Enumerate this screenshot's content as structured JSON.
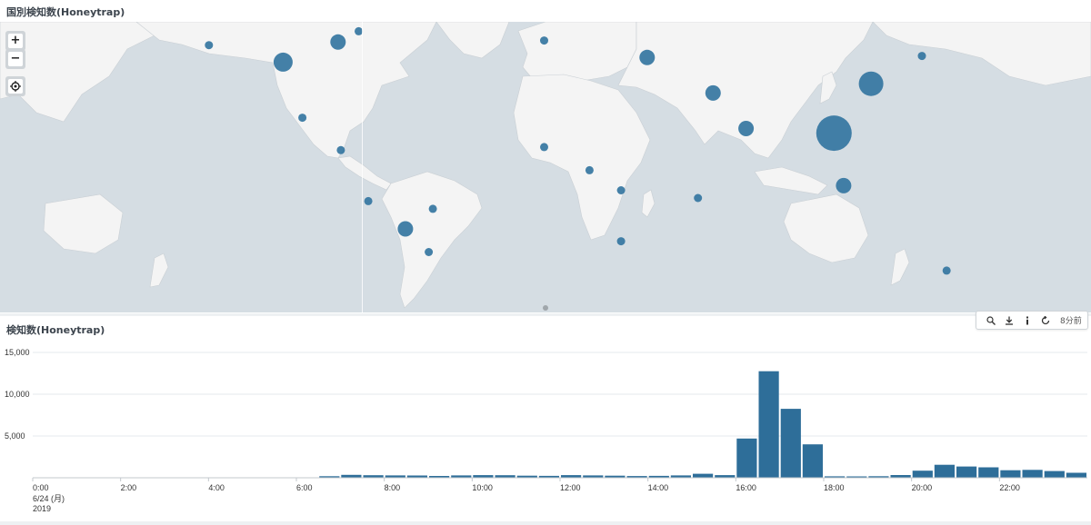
{
  "map_panel": {
    "title": "国別検知数(Honeytrap)",
    "controls": {
      "zoom_in": "+",
      "zoom_out": "−",
      "locate_icon": "crosshair-icon"
    },
    "colors": {
      "ocean": "#d5dde3",
      "land": "#f4f4f4",
      "bubble": "#31739f"
    },
    "bubbles": [
      {
        "lat": 39.5,
        "lon": -122.5,
        "size": "small"
      },
      {
        "lat": 34.0,
        "lon": -95.5,
        "size": "large"
      },
      {
        "lat": 40.5,
        "lon": -75.5,
        "size": "medium"
      },
      {
        "lat": 44.0,
        "lon": -68.0,
        "size": "small"
      },
      {
        "lat": 16.0,
        "lon": -88.5,
        "size": "small"
      },
      {
        "lat": 5.5,
        "lon": -74.5,
        "size": "small"
      },
      {
        "lat": -11.0,
        "lon": -64.5,
        "size": "small"
      },
      {
        "lat": -20.0,
        "lon": -51.0,
        "size": "medium"
      },
      {
        "lat": -13.5,
        "lon": -41.0,
        "size": "small"
      },
      {
        "lat": -27.5,
        "lon": -42.5,
        "size": "small"
      },
      {
        "lat": -51.0,
        "lon": -66.5,
        "size": "small"
      },
      {
        "lat": 54.0,
        "lon": 0.5,
        "size": "small"
      },
      {
        "lat": 41.0,
        "lon": -0.5,
        "size": "small"
      },
      {
        "lat": 54.0,
        "lon": 36.0,
        "size": "xlarge"
      },
      {
        "lat": 35.5,
        "lon": 37.0,
        "size": "medium"
      },
      {
        "lat": 59.0,
        "lon": 56.0,
        "size": "small"
      },
      {
        "lat": 50.5,
        "lon": 104.0,
        "size": "small"
      },
      {
        "lat": 24.0,
        "lon": 61.0,
        "size": "medium"
      },
      {
        "lat": 12.5,
        "lon": 73.0,
        "size": "medium"
      },
      {
        "lat": 27.0,
        "lon": 118.5,
        "size": "xlarge"
      },
      {
        "lat": 36.0,
        "lon": 137.0,
        "size": "small"
      },
      {
        "lat": 11.0,
        "lon": 105.0,
        "size": "xxlarge"
      },
      {
        "lat": -6.0,
        "lon": 108.5,
        "size": "medium"
      },
      {
        "lat": 6.5,
        "lon": -0.5,
        "size": "small"
      },
      {
        "lat": -1.0,
        "lon": 16.0,
        "size": "small"
      },
      {
        "lat": -7.5,
        "lon": 27.5,
        "size": "small"
      },
      {
        "lat": -24.0,
        "lon": 27.5,
        "size": "small"
      },
      {
        "lat": -10.0,
        "lon": 55.5,
        "size": "small"
      },
      {
        "lat": -33.5,
        "lon": 146.0,
        "size": "small"
      }
    ]
  },
  "chart_panel": {
    "title": "検知数(Honeytrap)",
    "toolbar": {
      "search_icon": "search-icon",
      "download_icon": "download-icon",
      "info_icon": "info-icon",
      "refresh_icon": "refresh-icon",
      "time_ago": "8分前"
    }
  },
  "chart_data": {
    "type": "bar",
    "title": "検知数(Honeytrap)",
    "xlabel": "",
    "ylabel": "",
    "ylim": [
      0,
      15000
    ],
    "yticks": [
      5000,
      10000,
      15000
    ],
    "ytick_labels": [
      "5,000",
      "10,000",
      "15,000"
    ],
    "x_tick_labels": [
      "0:00",
      "2:00",
      "4:00",
      "6:00",
      "8:00",
      "10:00",
      "12:00",
      "14:00",
      "16:00",
      "18:00",
      "20:00",
      "22:00"
    ],
    "x_sub_labels": [
      "6/24 (月)",
      "2019"
    ],
    "bar_interval_minutes": 30,
    "bar_color": "#2e6e99",
    "categories": [
      "0:00",
      "0:30",
      "1:00",
      "1:30",
      "2:00",
      "2:30",
      "3:00",
      "3:30",
      "4:00",
      "4:30",
      "5:00",
      "5:30",
      "6:00",
      "6:30",
      "7:00",
      "7:30",
      "8:00",
      "8:30",
      "9:00",
      "9:30",
      "10:00",
      "10:30",
      "11:00",
      "11:30",
      "12:00",
      "12:30",
      "13:00",
      "13:30",
      "14:00",
      "14:30",
      "15:00",
      "15:30",
      "16:00",
      "16:30",
      "17:00",
      "17:30",
      "18:00",
      "18:30",
      "19:00",
      "19:30",
      "20:00",
      "20:30",
      "21:00",
      "21:30",
      "22:00",
      "22:30",
      "23:00",
      "23:30"
    ],
    "values": [
      0,
      0,
      0,
      0,
      0,
      0,
      0,
      0,
      0,
      0,
      0,
      0,
      0,
      180,
      350,
      300,
      280,
      270,
      220,
      280,
      320,
      300,
      250,
      230,
      320,
      280,
      250,
      210,
      230,
      280,
      480,
      320,
      4700,
      12750,
      8250,
      4000,
      170,
      160,
      190,
      330,
      850,
      1550,
      1350,
      1250,
      900,
      950,
      800,
      600
    ]
  }
}
